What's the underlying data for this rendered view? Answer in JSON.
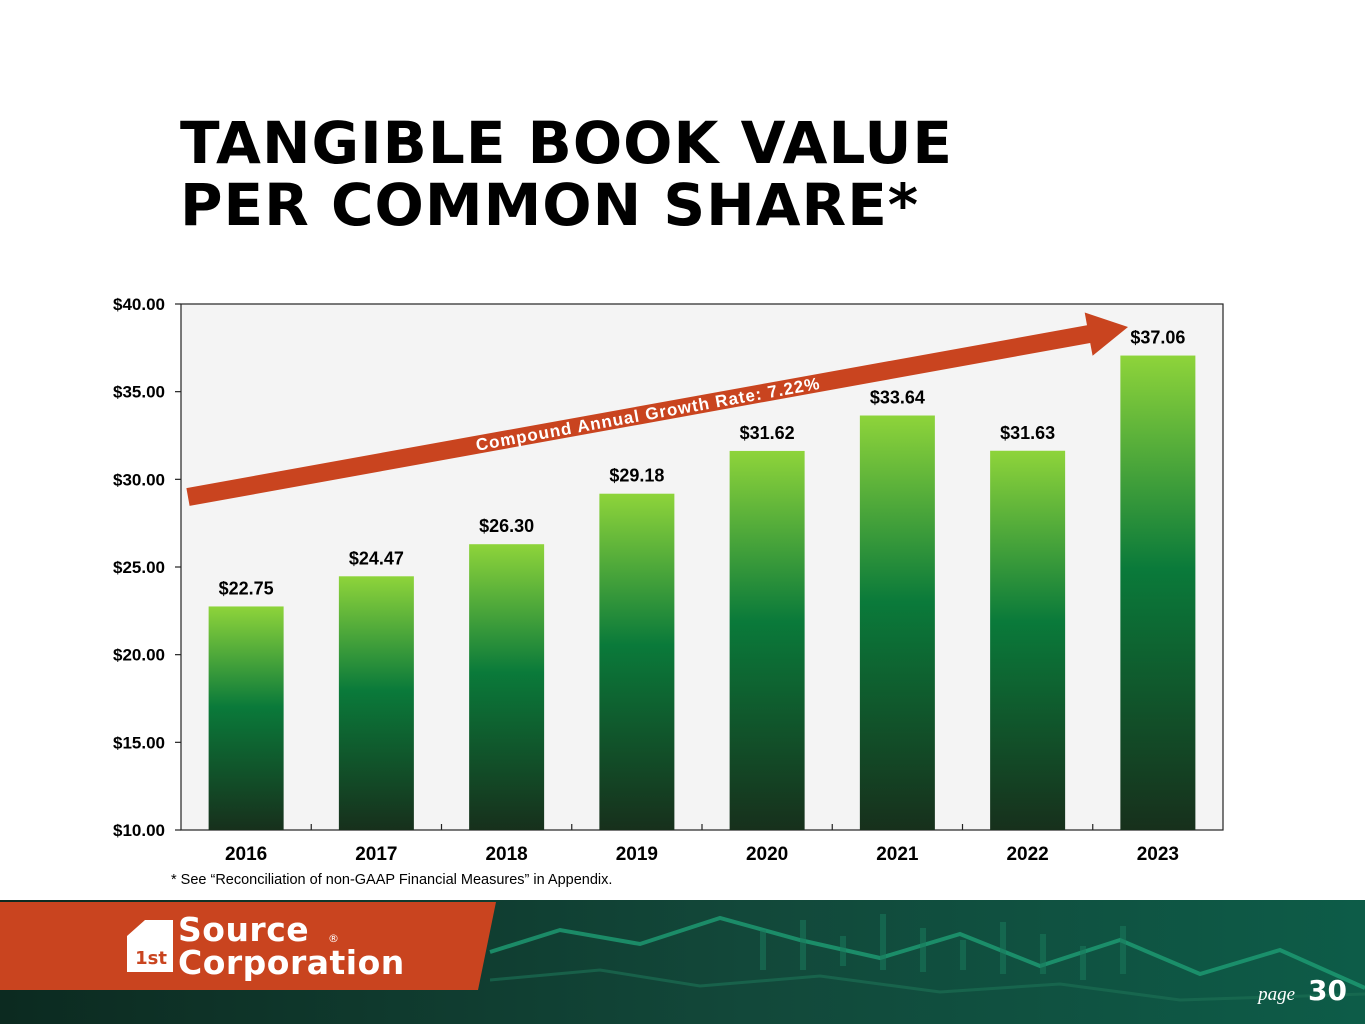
{
  "title": {
    "line1": "TANGIBLE BOOK VALUE",
    "line2": "PER COMMON SHARE*"
  },
  "chart_data": {
    "type": "bar",
    "categories": [
      "2016",
      "2017",
      "2018",
      "2019",
      "2020",
      "2021",
      "2022",
      "2023"
    ],
    "values": [
      22.75,
      24.47,
      26.3,
      29.18,
      31.62,
      33.64,
      31.63,
      37.06
    ],
    "data_labels": [
      "$22.75",
      "$24.47",
      "$26.30",
      "$29.18",
      "$31.62",
      "$33.64",
      "$31.63",
      "$37.06"
    ],
    "ylim": [
      10,
      40
    ],
    "yticks": [
      10,
      15,
      20,
      25,
      30,
      35,
      40
    ],
    "ytick_labels": [
      "$10.00",
      "$15.00",
      "$20.00",
      "$25.00",
      "$30.00",
      "$35.00",
      "$40.00"
    ],
    "xlabel": "",
    "ylabel": "",
    "grid": false,
    "annotation": "Compound Annual Growth Rate: 7.22%",
    "colors": {
      "bar_top": "#8ed43a",
      "bar_mid": "#0a7a3a",
      "bar_bottom": "#17301c",
      "arrow": "#c9441f",
      "plot_bg": "#f4f4f4"
    }
  },
  "footnote": "* See “Reconciliation of non-GAAP Financial Measures” in Appendix.",
  "footer": {
    "logo_line1": "Source",
    "logo_line2": "Corporation",
    "logo_mark": "1st",
    "registered": "®",
    "page_label": "page",
    "page_number": "30",
    "colors": {
      "brand": "#c9441f",
      "background": "#0e2a22",
      "accent": "#1e9e74"
    }
  }
}
